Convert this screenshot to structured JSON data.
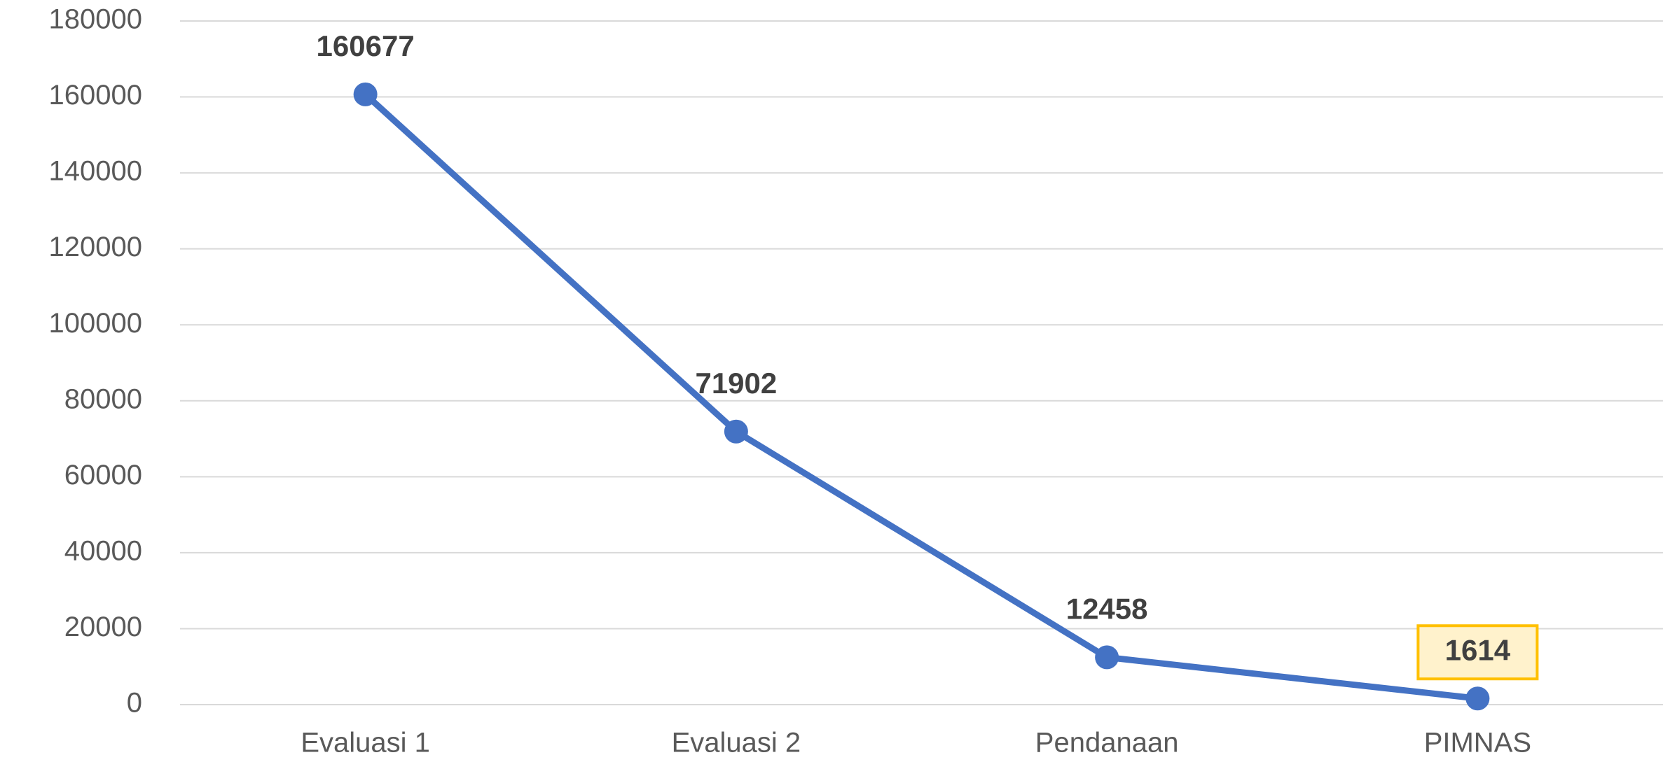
{
  "chart_data": {
    "type": "line",
    "categories": [
      "Evaluasi 1",
      "Evaluasi 2",
      "Pendanaan",
      "PIMNAS"
    ],
    "series": [
      {
        "color": "#4472c4",
        "values": [
          160677,
          71902,
          12458,
          1614
        ]
      }
    ],
    "ylim": [
      0,
      180000
    ],
    "yticks": [
      0,
      20000,
      40000,
      60000,
      80000,
      100000,
      120000,
      140000,
      160000,
      180000
    ],
    "grid": true,
    "highlighted_point": 3
  }
}
